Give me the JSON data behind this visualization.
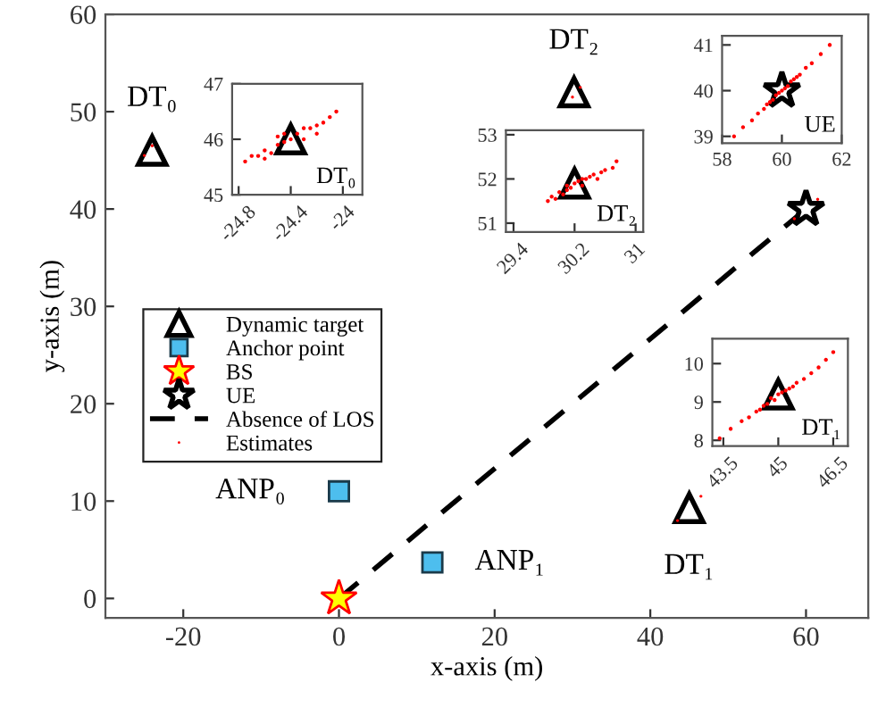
{
  "chart_data": [
    {
      "type": "scatter",
      "xlabel": "x-axis (m)",
      "ylabel": "y-axis (m)",
      "xlim": [
        -30,
        68
      ],
      "ylim": [
        -2,
        60
      ],
      "xticks": [
        {
          "value": -20,
          "label": "-20"
        },
        0,
        20,
        40,
        60
      ],
      "yticks": [
        0,
        10,
        20,
        30,
        40,
        50,
        60
      ],
      "grid": false,
      "legend": "left",
      "series": [
        {
          "name": "Dynamic target",
          "type": "scatter",
          "marker": "triangle",
          "color": "#000000",
          "x": [
            -24,
            45,
            30.2
          ],
          "values": [
            46,
            9.3,
            52
          ]
        },
        {
          "name": "Anchor point",
          "type": "scatter",
          "marker": "square",
          "color": "#4dbeee",
          "x": [
            0,
            12
          ],
          "values": [
            11,
            3.7
          ]
        },
        {
          "name": "BS",
          "type": "scatter",
          "marker": "star",
          "color": "#ffff00",
          "x": [
            0
          ],
          "values": [
            0
          ]
        },
        {
          "name": "UE",
          "type": "scatter",
          "marker": "star",
          "color": "#000000",
          "x": [
            60
          ],
          "values": [
            40
          ]
        },
        {
          "name": "Absence of LOS",
          "type": "line",
          "marker": "none",
          "line_style": "dashed",
          "color": "#000000",
          "x": [
            0,
            60
          ],
          "values": [
            0,
            40
          ]
        },
        {
          "name": "Estimates",
          "type": "scatter",
          "marker": "circle",
          "color": "#ff0000",
          "x": [
            -25,
            -24,
            43.5,
            46.5,
            30,
            31,
            58.5,
            61.5
          ],
          "values": [
            45.5,
            46.5,
            8,
            10.5,
            51.5,
            52.5,
            39,
            41
          ]
        }
      ],
      "annotations": [
        "DT₀",
        "DT₁",
        "DT₂",
        "ANP₀",
        "ANP₁"
      ]
    },
    {
      "type": "scatter",
      "xlim": [
        -24.85,
        -23.85
      ],
      "ylim": [
        45,
        47
      ],
      "xticks": [
        {
          "value": -24.8,
          "label": "-24.8"
        },
        {
          "value": -24.4,
          "label": "-24.4"
        },
        {
          "value": -24,
          "label": "-24"
        }
      ],
      "yticks": [
        45,
        46,
        47
      ],
      "grid": false,
      "series": [
        {
          "type": "scatter",
          "marker": "circle",
          "color": "#ff0000",
          "x": [
            -24.75,
            -24.7,
            -24.65,
            -24.6,
            -24.55,
            -24.5,
            -24.5,
            -24.45,
            -24.4,
            -24.35,
            -24.3,
            -24.3,
            -24.25,
            -24.2,
            -24.15,
            -24.1,
            -24.05,
            -24.6,
            -24.45,
            -24.2
          ],
          "values": [
            45.6,
            45.7,
            45.7,
            45.8,
            45.75,
            45.9,
            46.05,
            45.95,
            46.0,
            46.1,
            46.0,
            46.2,
            46.2,
            46.25,
            46.3,
            46.4,
            46.5,
            45.65,
            46.1,
            46.1
          ]
        },
        {
          "type": "scatter",
          "marker": "triangle",
          "color": "#000000",
          "x": [
            -24.4
          ],
          "values": [
            46
          ]
        }
      ],
      "annotations": [
        "DT₀"
      ]
    },
    {
      "type": "scatter",
      "xlim": [
        29.3,
        31.1
      ],
      "ylim": [
        50.8,
        53.1
      ],
      "xticks": [
        29.4,
        30.2,
        31
      ],
      "yticks": [
        51,
        52,
        53
      ],
      "grid": false,
      "series": [
        {
          "type": "scatter",
          "marker": "circle",
          "color": "#ff0000",
          "x": [
            29.85,
            29.9,
            29.95,
            30.0,
            30.05,
            30.1,
            30.1,
            30.15,
            30.2,
            30.25,
            30.3,
            30.3,
            30.35,
            30.4,
            30.45,
            30.5,
            30.55,
            30.6,
            30.7,
            30.75
          ],
          "values": [
            51.5,
            51.6,
            51.55,
            51.7,
            51.65,
            51.75,
            51.85,
            51.8,
            51.9,
            51.95,
            51.85,
            52.0,
            52.0,
            52.05,
            52.1,
            52.0,
            52.15,
            52.2,
            52.25,
            52.4
          ]
        },
        {
          "type": "scatter",
          "marker": "triangle",
          "color": "#000000",
          "x": [
            30.2
          ],
          "values": [
            51.9
          ]
        }
      ],
      "annotations": [
        "DT₂"
      ]
    },
    {
      "type": "scatter",
      "xlim": [
        58,
        62
      ],
      "ylim": [
        38.85,
        41.2
      ],
      "xticks": [
        58,
        60,
        62
      ],
      "yticks": [
        39,
        40,
        41
      ],
      "grid": false,
      "series": [
        {
          "type": "scatter",
          "marker": "circle",
          "color": "#ff0000",
          "x": [
            58.4,
            58.7,
            59.0,
            59.2,
            59.4,
            59.5,
            59.6,
            59.7,
            59.8,
            59.9,
            60.0,
            60.1,
            60.2,
            60.3,
            60.4,
            60.5,
            60.6,
            60.8,
            61.0,
            61.3,
            61.6
          ],
          "values": [
            39.0,
            39.2,
            39.35,
            39.5,
            39.6,
            39.7,
            39.75,
            39.8,
            39.9,
            39.95,
            40.0,
            40.05,
            40.1,
            40.2,
            40.25,
            40.3,
            40.35,
            40.5,
            40.6,
            40.8,
            41.0
          ]
        },
        {
          "type": "scatter",
          "marker": "star",
          "color": "#000000",
          "x": [
            60
          ],
          "values": [
            40
          ]
        }
      ],
      "annotations": [
        "UE"
      ]
    },
    {
      "type": "scatter",
      "xlim": [
        43.2,
        46.9
      ],
      "ylim": [
        7.85,
        10.65
      ],
      "xticks": [
        43.5,
        45,
        46.5
      ],
      "yticks": [
        8,
        9,
        10
      ],
      "grid": false,
      "series": [
        {
          "type": "scatter",
          "marker": "circle",
          "color": "#ff0000",
          "x": [
            43.4,
            43.7,
            44.0,
            44.2,
            44.4,
            44.5,
            44.6,
            44.7,
            44.8,
            44.9,
            45.0,
            45.1,
            45.2,
            45.3,
            45.4,
            45.5,
            45.7,
            45.9,
            46.1,
            46.3,
            46.5
          ],
          "values": [
            8.05,
            8.3,
            8.5,
            8.6,
            8.75,
            8.8,
            8.9,
            8.95,
            9.1,
            9.05,
            9.2,
            9.25,
            9.3,
            9.35,
            9.4,
            9.5,
            9.6,
            9.75,
            9.9,
            10.1,
            10.3
          ]
        },
        {
          "type": "scatter",
          "marker": "triangle",
          "color": "#000000",
          "x": [
            45
          ],
          "values": [
            9.2
          ]
        }
      ],
      "annotations": [
        "DT₁"
      ]
    }
  ]
}
